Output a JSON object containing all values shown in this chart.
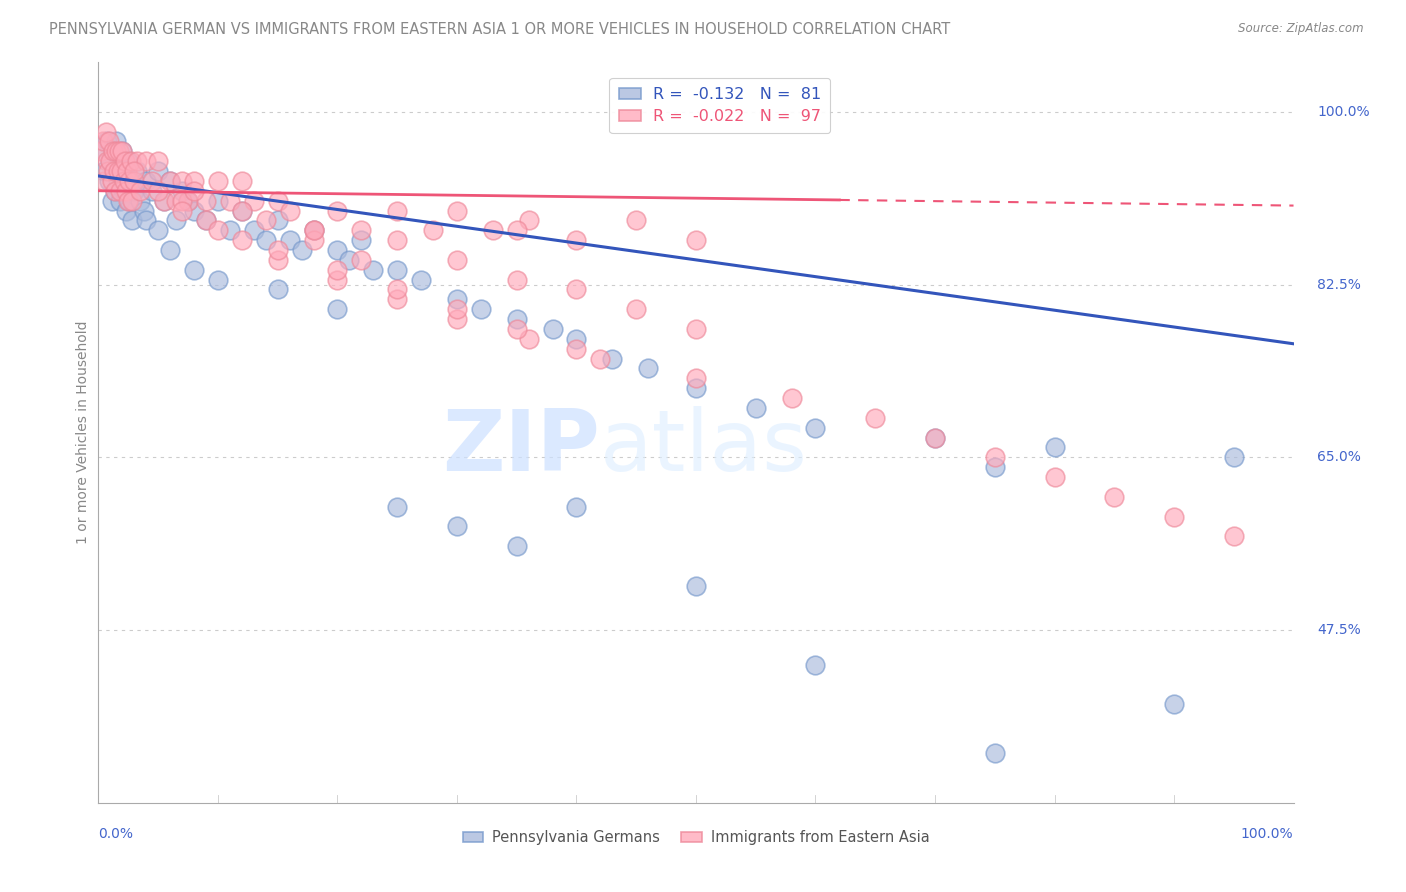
{
  "title": "PENNSYLVANIA GERMAN VS IMMIGRANTS FROM EASTERN ASIA 1 OR MORE VEHICLES IN HOUSEHOLD CORRELATION CHART",
  "source": "Source: ZipAtlas.com",
  "ylabel": "1 or more Vehicles in Household",
  "xlim": [
    0,
    100
  ],
  "ylim": [
    30,
    105
  ],
  "yticks": [
    47.5,
    65.0,
    82.5,
    100.0
  ],
  "ytick_labels": [
    "47.5%",
    "65.0%",
    "82.5%",
    "100.0%"
  ],
  "xtick_minor": [
    10,
    20,
    30,
    40,
    50,
    60,
    70,
    80,
    90
  ],
  "legend_blue_label": "Pennsylvania Germans",
  "legend_pink_label": "Immigrants from Eastern Asia",
  "blue_line_y_start": 93.5,
  "blue_line_y_end": 76.5,
  "pink_line_solid_end_x": 62,
  "pink_line_y_start": 92.0,
  "pink_line_y_end": 90.5,
  "watermark_zip": "ZIP",
  "watermark_atlas": "atlas",
  "bg_color": "#ffffff",
  "blue_dot_color": "#aabbdd",
  "blue_dot_edge": "#7799cc",
  "pink_dot_color": "#ffaabb",
  "pink_dot_edge": "#ee8899",
  "blue_line_color": "#3355bb",
  "pink_line_color": "#ee5577",
  "title_color": "#888888",
  "source_color": "#888888",
  "tick_label_color": "#4466cc",
  "ylabel_color": "#888888",
  "legend_text_color_blue": "#3355bb",
  "legend_text_color_pink": "#ee5577",
  "legend_bottom_color": "#555555",
  "grid_color": "#cccccc",
  "scatter_blue_x": [
    0.3,
    0.5,
    0.7,
    0.9,
    1.0,
    1.1,
    1.2,
    1.3,
    1.4,
    1.5,
    1.6,
    1.7,
    1.8,
    1.9,
    2.0,
    2.1,
    2.2,
    2.3,
    2.4,
    2.5,
    2.6,
    2.7,
    2.8,
    3.0,
    3.2,
    3.5,
    3.8,
    4.0,
    4.5,
    5.0,
    5.5,
    6.0,
    6.5,
    7.0,
    7.5,
    8.0,
    9.0,
    10.0,
    11.0,
    12.0,
    13.0,
    14.0,
    15.0,
    16.0,
    17.0,
    18.0,
    20.0,
    21.0,
    22.0,
    23.0,
    25.0,
    27.0,
    30.0,
    32.0,
    35.0,
    38.0,
    40.0,
    43.0,
    46.0,
    50.0,
    55.0,
    60.0,
    70.0,
    75.0,
    80.0,
    90.0,
    95.0,
    4.0,
    5.0,
    6.0,
    8.0,
    10.0,
    15.0,
    20.0,
    25.0,
    30.0,
    35.0,
    40.0,
    50.0,
    60.0,
    75.0
  ],
  "scatter_blue_y": [
    96.0,
    94.0,
    97.0,
    93.0,
    95.0,
    91.0,
    96.0,
    94.0,
    92.0,
    97.0,
    93.0,
    95.0,
    91.0,
    94.0,
    96.0,
    92.0,
    94.0,
    90.0,
    93.0,
    95.0,
    91.0,
    93.0,
    89.0,
    92.0,
    94.0,
    91.0,
    90.0,
    93.0,
    92.0,
    94.0,
    91.0,
    93.0,
    89.0,
    92.0,
    91.0,
    90.0,
    89.0,
    91.0,
    88.0,
    90.0,
    88.0,
    87.0,
    89.0,
    87.0,
    86.0,
    88.0,
    86.0,
    85.0,
    87.0,
    84.0,
    84.0,
    83.0,
    81.0,
    80.0,
    79.0,
    78.0,
    77.0,
    75.0,
    74.0,
    72.0,
    70.0,
    68.0,
    67.0,
    64.0,
    66.0,
    40.0,
    65.0,
    89.0,
    88.0,
    86.0,
    84.0,
    83.0,
    82.0,
    80.0,
    60.0,
    58.0,
    56.0,
    60.0,
    52.0,
    44.0,
    35.0
  ],
  "scatter_pink_x": [
    0.2,
    0.4,
    0.5,
    0.6,
    0.7,
    0.8,
    0.9,
    1.0,
    1.1,
    1.2,
    1.3,
    1.4,
    1.5,
    1.6,
    1.7,
    1.8,
    1.9,
    2.0,
    2.1,
    2.2,
    2.3,
    2.4,
    2.5,
    2.6,
    2.7,
    2.8,
    3.0,
    3.2,
    3.5,
    4.0,
    4.5,
    5.0,
    5.5,
    6.0,
    6.5,
    7.0,
    7.5,
    8.0,
    9.0,
    10.0,
    11.0,
    12.0,
    13.0,
    14.0,
    15.0,
    16.0,
    18.0,
    20.0,
    22.0,
    25.0,
    28.0,
    30.0,
    33.0,
    36.0,
    40.0,
    45.0,
    50.0,
    35.0,
    18.0,
    22.0,
    25.0,
    30.0,
    35.0,
    40.0,
    45.0,
    50.0,
    7.0,
    9.0,
    12.0,
    15.0,
    20.0,
    25.0,
    30.0,
    36.0,
    42.0,
    50.0,
    58.0,
    65.0,
    70.0,
    75.0,
    80.0,
    85.0,
    90.0,
    95.0,
    3.0,
    5.0,
    7.0,
    10.0,
    15.0,
    20.0,
    25.0,
    30.0,
    35.0,
    40.0,
    8.0,
    12.0,
    18.0
  ],
  "scatter_pink_y": [
    96.0,
    97.0,
    93.0,
    98.0,
    95.0,
    94.0,
    97.0,
    95.0,
    93.0,
    96.0,
    94.0,
    92.0,
    96.0,
    94.0,
    96.0,
    92.0,
    94.0,
    96.0,
    93.0,
    95.0,
    92.0,
    94.0,
    91.0,
    93.0,
    95.0,
    91.0,
    93.0,
    95.0,
    92.0,
    95.0,
    93.0,
    95.0,
    91.0,
    93.0,
    91.0,
    93.0,
    91.0,
    93.0,
    91.0,
    93.0,
    91.0,
    93.0,
    91.0,
    89.0,
    91.0,
    90.0,
    88.0,
    90.0,
    88.0,
    90.0,
    88.0,
    90.0,
    88.0,
    89.0,
    87.0,
    89.0,
    87.0,
    88.0,
    87.0,
    85.0,
    87.0,
    85.0,
    83.0,
    82.0,
    80.0,
    78.0,
    91.0,
    89.0,
    87.0,
    85.0,
    83.0,
    81.0,
    79.0,
    77.0,
    75.0,
    73.0,
    71.0,
    69.0,
    67.0,
    65.0,
    63.0,
    61.0,
    59.0,
    57.0,
    94.0,
    92.0,
    90.0,
    88.0,
    86.0,
    84.0,
    82.0,
    80.0,
    78.0,
    76.0,
    92.0,
    90.0,
    88.0
  ]
}
